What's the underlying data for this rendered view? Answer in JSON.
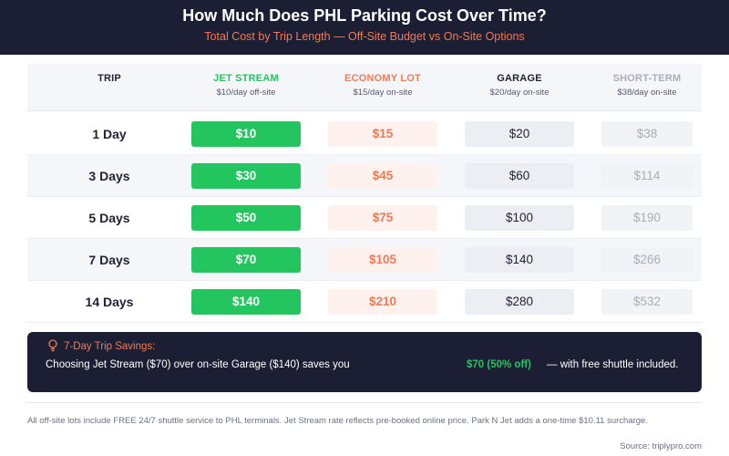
{
  "header": {
    "title": "How Much Does PHL Parking Cost Over Time?",
    "subtitle": "Total Cost by Trip Length — Off-Site Budget vs On-Site Options"
  },
  "colors": {
    "header_bg": "#1c1f33",
    "jet_stream": "#22c55e",
    "economy": "#f07a55",
    "garage": "#1f2233",
    "short_term": "#a8adb8"
  },
  "chart_data": {
    "type": "table",
    "title": "How Much Does PHL Parking Cost Over Time?",
    "subtitle": "Total Cost by Trip Length — Off-Site Budget vs On-Site Options",
    "row_header": "TRIP",
    "columns": [
      {
        "name": "JET STREAM",
        "rate": "$10/day off-site"
      },
      {
        "name": "ECONOMY LOT",
        "rate": "$15/day on-site"
      },
      {
        "name": "GARAGE",
        "rate": "$20/day on-site"
      },
      {
        "name": "SHORT-TERM",
        "rate": "$38/day on-site"
      }
    ],
    "rows": [
      {
        "trip": "1 Day",
        "values": [
          "$10",
          "$15",
          "$20",
          "$38"
        ]
      },
      {
        "trip": "3 Days",
        "values": [
          "$30",
          "$45",
          "$60",
          "$114"
        ]
      },
      {
        "trip": "5 Days",
        "values": [
          "$50",
          "$75",
          "$100",
          "$190"
        ]
      },
      {
        "trip": "7 Days",
        "values": [
          "$70",
          "$105",
          "$140",
          "$266"
        ]
      },
      {
        "trip": "14 Days",
        "values": [
          "$140",
          "$210",
          "$280",
          "$532"
        ]
      }
    ]
  },
  "savings": {
    "icon": "lightbulb-icon",
    "title": "7-Day Trip Savings:",
    "text": "Choosing Jet Stream ($70) over on-site Garage ($140) saves you",
    "amount": "$70 (50% off)",
    "rest": "— with free shuttle included."
  },
  "footnote": "All off-site lots include FREE 24/7 shuttle service to PHL terminals. Jet Stream rate reflects pre-booked online price. Park N Jet adds a one-time $10.11 surcharge.",
  "source": "Source: triplypro.com"
}
